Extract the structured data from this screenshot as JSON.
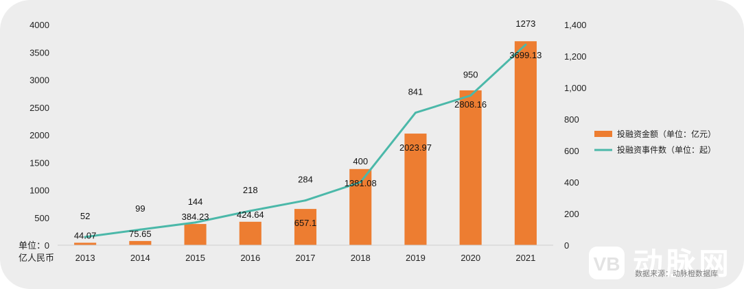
{
  "chart_data": {
    "type": "bar",
    "categories": [
      "2013",
      "2014",
      "2015",
      "2016",
      "2017",
      "2018",
      "2019",
      "2020",
      "2021"
    ],
    "series": [
      {
        "name": "投融资金额（单位：亿元）",
        "kind": "bar",
        "axis": "left",
        "color": "#ed7d31",
        "values": [
          44.07,
          75.65,
          384.23,
          424.64,
          657.1,
          1381.08,
          2023.97,
          2808.16,
          3699.13
        ],
        "labels": [
          "44.07",
          "75.65",
          "384.23",
          "424.64",
          "657.1",
          "1381.08",
          "2023.97",
          "2808.16",
          "3699.13"
        ]
      },
      {
        "name": "投融资事件数（单位：起）",
        "kind": "line",
        "axis": "right",
        "color": "#4bb8a9",
        "values": [
          52,
          99,
          144,
          218,
          284,
          400,
          841,
          950,
          1273
        ],
        "labels": [
          "52",
          "99",
          "144",
          "218",
          "284",
          "400",
          "841",
          "950",
          "1273"
        ]
      }
    ],
    "y_left": {
      "range": [
        0,
        4000
      ],
      "ticks": [
        "0",
        "500",
        "1000",
        "1500",
        "2000",
        "2500",
        "3000",
        "3500",
        "4000"
      ]
    },
    "y_right": {
      "range": [
        0,
        1400
      ],
      "ticks": [
        "0",
        "200",
        "400",
        "600",
        "800",
        "1,000",
        "1,200",
        "1,400"
      ]
    },
    "unit_label_line1": "单位：",
    "unit_label_line2": "亿人民币",
    "legend_position": "right",
    "grid": false
  },
  "source": "数据来源：动脉橙数据库",
  "watermark": "动脉网",
  "watermark_logo_text": "VB"
}
